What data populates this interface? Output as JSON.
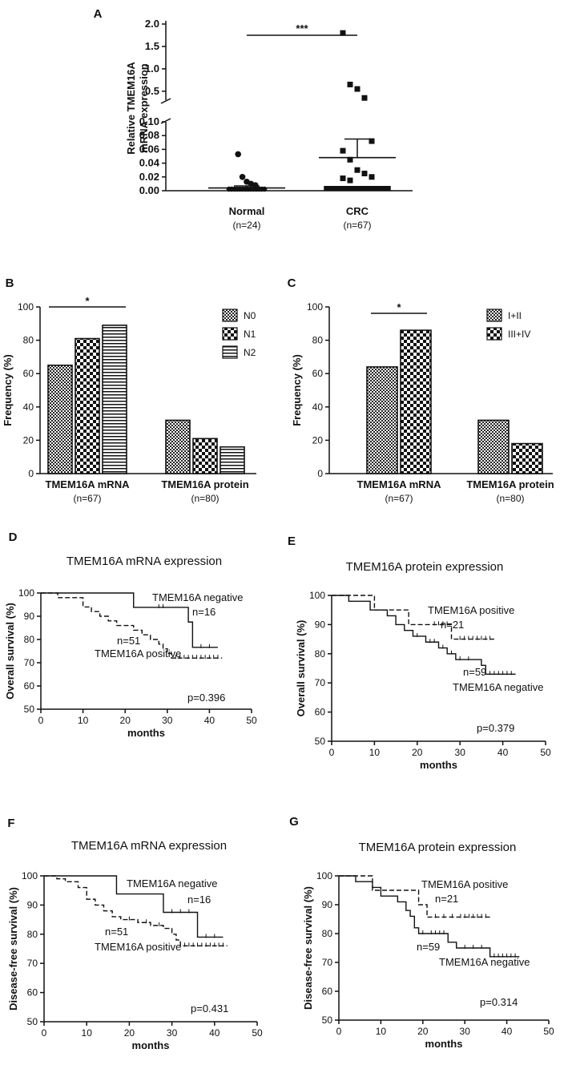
{
  "chart_data": [
    {
      "panel": "A",
      "type": "scatter",
      "ylabel": "Relative TMEM16A mRNA expression",
      "ylabel_lines": [
        "Relative TMEM16A",
        "mRNA expression"
      ],
      "yticks_upper": [
        "0.5",
        "1.0",
        "1.5",
        "2.0"
      ],
      "yticks_lower": [
        "0.00",
        "0.02",
        "0.04",
        "0.06",
        "0.08",
        "0.10"
      ],
      "ylim_upper": [
        0.3,
        2.0
      ],
      "ylim_lower": [
        0,
        0.1
      ],
      "categories": [
        {
          "name": "Normal",
          "n": "(n=24)",
          "mean": 0.004,
          "sem_upper": 0.007,
          "outliers": [
            0.053,
            0.02,
            0.013,
            0.01,
            0.008
          ]
        },
        {
          "name": "CRC",
          "n": "(n=67)",
          "mean": 0.048,
          "sem_upper": 0.075,
          "outliers": [
            1.8,
            0.65,
            0.55,
            0.35,
            0.072,
            0.058,
            0.045,
            0.03,
            0.025,
            0.02,
            0.018,
            0.015
          ]
        }
      ],
      "significance": "***"
    },
    {
      "panel": "B",
      "type": "bar",
      "ylabel": "Frequency (%)",
      "ylim": [
        0,
        100
      ],
      "yticks": [
        "0",
        "20",
        "40",
        "60",
        "80",
        "100"
      ],
      "groups": [
        {
          "name": "TMEM16A mRNA",
          "n": "(n=67)"
        },
        {
          "name": "TMEM16A protein",
          "n": "(n=80)"
        }
      ],
      "series": [
        {
          "name": "N0",
          "values": [
            65,
            32
          ]
        },
        {
          "name": "N1",
          "values": [
            81,
            21
          ]
        },
        {
          "name": "N2",
          "values": [
            89,
            16
          ]
        }
      ],
      "significance": "*"
    },
    {
      "panel": "C",
      "type": "bar",
      "ylabel": "Frequency (%)",
      "ylim": [
        0,
        100
      ],
      "yticks": [
        "0",
        "20",
        "40",
        "60",
        "80",
        "100"
      ],
      "groups": [
        {
          "name": "TMEM16A mRNA",
          "n": "(n=67)"
        },
        {
          "name": "TMEM16A protein",
          "n": "(n=80)"
        }
      ],
      "series": [
        {
          "name": "I+II",
          "values": [
            64,
            32
          ]
        },
        {
          "name": "III+IV",
          "values": [
            86,
            18
          ]
        }
      ],
      "significance": "*"
    },
    {
      "panel": "D",
      "type": "line",
      "title": "TMEM16A mRNA expression",
      "ylabel": "Overall survival (%)",
      "xlabel": "months",
      "xlim": [
        0,
        50
      ],
      "ylim": [
        50,
        100
      ],
      "xticks": [
        "0",
        "10",
        "20",
        "30",
        "40",
        "50"
      ],
      "yticks": [
        "50",
        "60",
        "70",
        "80",
        "90",
        "100"
      ],
      "pvalue": "p=0.396",
      "series": [
        {
          "name": "TMEM16A  negative",
          "n": "n=16",
          "dashed": false,
          "steps": [
            [
              0,
              100
            ],
            [
              22,
              93.8
            ],
            [
              35,
              87.5
            ],
            [
              36,
              76.6
            ],
            [
              42,
              76.6
            ]
          ],
          "censor": [
            28,
            29,
            38,
            40
          ]
        },
        {
          "name": "TMEM16A positive",
          "n": "n=51",
          "dashed": true,
          "steps": [
            [
              0,
              100
            ],
            [
              4,
              98
            ],
            [
              10,
              94
            ],
            [
              12,
              92
            ],
            [
              14,
              90
            ],
            [
              16,
              88
            ],
            [
              18,
              86
            ],
            [
              22,
              84
            ],
            [
              24,
              82
            ],
            [
              26,
              80
            ],
            [
              28,
              78
            ],
            [
              29,
              76
            ],
            [
              30,
              74
            ],
            [
              31,
              72
            ],
            [
              43,
              72
            ]
          ],
          "censor": [
            32,
            33,
            34,
            35,
            36,
            37,
            38,
            39,
            40,
            41,
            42
          ]
        }
      ]
    },
    {
      "panel": "E",
      "type": "line",
      "title": "TMEM16A protein expression",
      "ylabel": "Overall survival (%)",
      "xlabel": "months",
      "xlim": [
        0,
        50
      ],
      "ylim": [
        50,
        100
      ],
      "xticks": [
        "0",
        "10",
        "20",
        "30",
        "40",
        "50"
      ],
      "yticks": [
        "50",
        "60",
        "70",
        "80",
        "90",
        "100"
      ],
      "pvalue": "p=0.379",
      "series": [
        {
          "name": "TMEM16A positive",
          "n": "n=21",
          "dashed": true,
          "steps": [
            [
              0,
              100
            ],
            [
              10,
              95
            ],
            [
              18,
              90
            ],
            [
              28,
              85
            ],
            [
              38,
              85
            ]
          ],
          "censor": [
            24,
            25,
            26,
            27,
            30,
            31,
            32,
            33,
            34,
            35,
            36,
            37
          ]
        },
        {
          "name": "TMEM16A  negative",
          "n": "n=59",
          "dashed": false,
          "steps": [
            [
              0,
              100
            ],
            [
              4,
              98
            ],
            [
              9,
              95
            ],
            [
              13,
              93
            ],
            [
              15,
              90
            ],
            [
              17,
              88
            ],
            [
              19,
              86
            ],
            [
              22,
              84
            ],
            [
              25,
              82
            ],
            [
              27,
              80
            ],
            [
              29,
              78
            ],
            [
              35,
              76
            ],
            [
              36,
              73
            ],
            [
              43,
              73
            ]
          ],
          "censor": [
            20,
            23,
            24,
            26,
            28,
            30,
            32,
            37,
            38,
            39,
            40,
            41,
            42
          ]
        }
      ]
    },
    {
      "panel": "F",
      "type": "line",
      "title": "TMEM16A mRNA expression",
      "ylabel": "Disease-free survival (%)",
      "xlabel": "months",
      "xlim": [
        0,
        50
      ],
      "ylim": [
        50,
        100
      ],
      "xticks": [
        "0",
        "10",
        "20",
        "30",
        "40",
        "50"
      ],
      "yticks": [
        "50",
        "60",
        "70",
        "80",
        "90",
        "100"
      ],
      "pvalue": "p=0.431",
      "series": [
        {
          "name": "TMEM16A  negative",
          "n": "n=16",
          "dashed": false,
          "steps": [
            [
              0,
              100
            ],
            [
              17,
              93.8
            ],
            [
              28,
              87.5
            ],
            [
              36,
              79
            ],
            [
              42,
              79
            ]
          ],
          "censor": [
            30,
            32,
            34,
            38,
            40
          ]
        },
        {
          "name": "TMEM16A positive",
          "n": "n=51",
          "dashed": true,
          "steps": [
            [
              0,
              100
            ],
            [
              3,
              99
            ],
            [
              5,
              98
            ],
            [
              8,
              96
            ],
            [
              10,
              92
            ],
            [
              12,
              90
            ],
            [
              14,
              88
            ],
            [
              16,
              86
            ],
            [
              18,
              85
            ],
            [
              22,
              84
            ],
            [
              25,
              83
            ],
            [
              28,
              82
            ],
            [
              30,
              80
            ],
            [
              31,
              78
            ],
            [
              32,
              76
            ],
            [
              43,
              76
            ]
          ],
          "censor": [
            20,
            24,
            27,
            33,
            34,
            35,
            36,
            37,
            38,
            39,
            40,
            41,
            42
          ]
        }
      ]
    },
    {
      "panel": "G",
      "type": "line",
      "title": "TMEM16A protein expression",
      "ylabel": "Disease-free survival (%)",
      "xlabel": "months",
      "xlim": [
        0,
        50
      ],
      "ylim": [
        50,
        100
      ],
      "xticks": [
        "0",
        "10",
        "20",
        "30",
        "40",
        "50"
      ],
      "yticks": [
        "50",
        "60",
        "70",
        "80",
        "90",
        "100"
      ],
      "pvalue": "p=0.314",
      "series": [
        {
          "name": "TMEM16A positive",
          "n": "n=21",
          "dashed": true,
          "steps": [
            [
              0,
              100
            ],
            [
              8,
              95
            ],
            [
              19,
              90
            ],
            [
              21,
              85.7
            ],
            [
              36,
              85.7
            ]
          ],
          "censor": [
            23,
            25,
            27,
            29,
            30,
            31,
            32,
            33,
            34,
            35
          ]
        },
        {
          "name": "TMEM16A  negative",
          "n": "n=59",
          "dashed": false,
          "steps": [
            [
              0,
              100
            ],
            [
              4,
              98
            ],
            [
              8,
              96
            ],
            [
              10,
              93
            ],
            [
              14,
              91
            ],
            [
              16,
              88
            ],
            [
              17,
              86
            ],
            [
              18,
              82
            ],
            [
              19,
              80
            ],
            [
              26,
              77
            ],
            [
              28,
              75
            ],
            [
              36,
              72
            ],
            [
              43,
              72
            ]
          ],
          "censor": [
            20,
            22,
            23,
            24,
            25,
            30,
            32,
            34,
            37,
            38,
            39,
            40,
            41,
            42
          ]
        }
      ]
    }
  ]
}
